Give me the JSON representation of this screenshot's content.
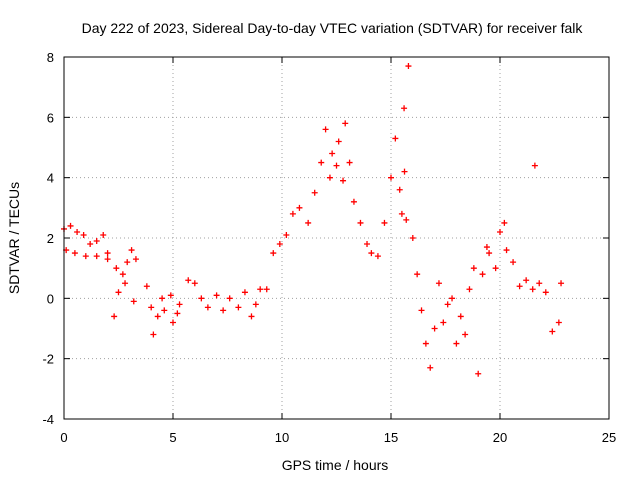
{
  "chart_data": {
    "type": "scatter",
    "title": "Day 222 of 2023, Sidereal Day-to-day VTEC variation (SDTVAR) for receiver falk",
    "xlabel": "GPS time / hours",
    "ylabel": "SDTVAR / TECUs",
    "xlim": [
      0,
      25
    ],
    "ylim": [
      -4,
      8
    ],
    "xticks": [
      0,
      5,
      10,
      15,
      20,
      25
    ],
    "yticks": [
      -4,
      -2,
      0,
      2,
      4,
      6,
      8
    ],
    "grid": true,
    "marker": "+",
    "series": [
      {
        "name": "SDTVAR",
        "color": "#ff0000",
        "x": [
          0.0,
          0.3,
          0.6,
          0.9,
          1.2,
          1.5,
          1.8,
          2.0,
          0.1,
          0.5,
          1.0,
          1.5,
          2.0,
          2.3,
          2.5,
          2.7,
          2.9,
          3.1,
          3.3,
          2.4,
          2.8,
          3.2,
          3.8,
          4.0,
          4.3,
          4.6,
          5.0,
          5.2,
          4.1,
          4.5,
          4.9,
          5.3,
          5.7,
          6.0,
          6.3,
          6.6,
          7.0,
          7.3,
          7.6,
          8.0,
          8.3,
          8.6,
          9.0,
          9.3,
          8.8,
          9.6,
          9.9,
          10.2,
          10.5,
          10.8,
          11.2,
          11.5,
          11.8,
          12.0,
          12.3,
          12.6,
          12.9,
          12.2,
          12.5,
          12.8,
          13.1,
          13.3,
          13.6,
          13.9,
          14.1,
          14.4,
          14.7,
          15.0,
          15.2,
          15.4,
          15.6,
          15.8,
          15.5,
          15.62,
          15.7,
          16.0,
          16.2,
          16.4,
          16.6,
          16.8,
          17.0,
          17.2,
          17.4,
          17.6,
          17.8,
          18.0,
          18.2,
          18.4,
          18.6,
          18.8,
          19.0,
          19.2,
          19.5,
          19.8,
          20.0,
          20.3,
          20.6,
          20.9,
          21.2,
          21.5,
          21.8,
          22.1,
          22.4,
          22.7,
          22.8,
          21.6,
          19.4,
          20.2
        ],
        "y": [
          2.3,
          2.4,
          2.2,
          2.1,
          1.8,
          1.9,
          2.1,
          1.5,
          1.6,
          1.5,
          1.4,
          1.4,
          1.3,
          -0.6,
          0.2,
          0.8,
          1.2,
          1.6,
          1.3,
          1.0,
          0.5,
          -0.1,
          0.4,
          -0.3,
          -0.6,
          -0.4,
          -0.8,
          -0.5,
          -1.2,
          0.0,
          0.1,
          -0.2,
          0.6,
          0.5,
          0.0,
          -0.3,
          0.1,
          -0.4,
          0.0,
          -0.3,
          0.2,
          -0.6,
          0.3,
          0.3,
          -0.2,
          1.5,
          1.8,
          2.1,
          2.8,
          3.0,
          2.5,
          3.5,
          4.5,
          5.6,
          4.8,
          5.2,
          5.8,
          4.0,
          4.4,
          3.9,
          4.5,
          3.2,
          2.5,
          1.8,
          1.5,
          1.4,
          2.5,
          4.0,
          5.3,
          3.6,
          6.3,
          7.7,
          2.8,
          4.2,
          2.6,
          2.0,
          0.8,
          -0.4,
          -1.5,
          -2.3,
          -1.0,
          0.5,
          -0.8,
          -0.2,
          0.0,
          -1.5,
          -0.6,
          -1.2,
          0.3,
          1.0,
          -2.5,
          0.8,
          1.5,
          1.0,
          2.2,
          1.6,
          1.2,
          0.4,
          0.6,
          0.3,
          0.5,
          0.2,
          -1.1,
          -0.8,
          0.5,
          4.4,
          1.7,
          2.5
        ]
      }
    ]
  }
}
